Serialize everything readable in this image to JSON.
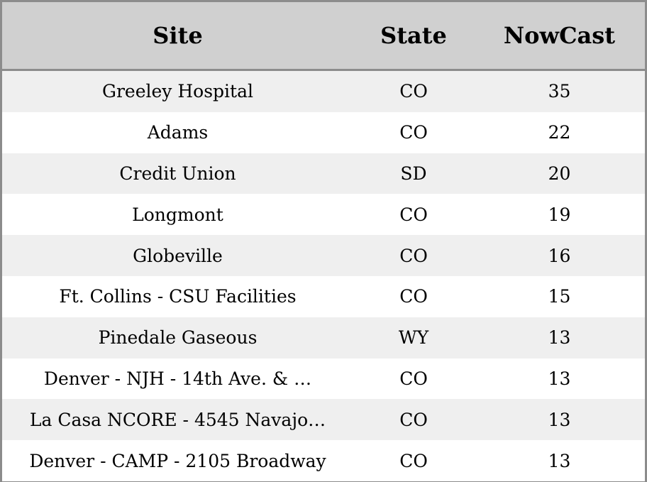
{
  "table": {
    "columns": [
      "Site",
      "State",
      "NowCast"
    ],
    "rows": [
      {
        "site": "Greeley Hospital",
        "state": "CO",
        "nowcast": "35"
      },
      {
        "site": "Adams",
        "state": "CO",
        "nowcast": "22"
      },
      {
        "site": "Credit Union",
        "state": "SD",
        "nowcast": "20"
      },
      {
        "site": "Longmont",
        "state": "CO",
        "nowcast": "19"
      },
      {
        "site": "Globeville",
        "state": "CO",
        "nowcast": "16"
      },
      {
        "site": "Ft. Collins - CSU Facilities",
        "state": "CO",
        "nowcast": "15"
      },
      {
        "site": "Pinedale Gaseous",
        "state": "WY",
        "nowcast": "13"
      },
      {
        "site": "Denver - NJH - 14th Ave. & …",
        "state": "CO",
        "nowcast": "13"
      },
      {
        "site": "La Casa NCORE - 4545 Navajo…",
        "state": "CO",
        "nowcast": "13"
      },
      {
        "site": "Denver - CAMP - 2105 Broadway",
        "state": "CO",
        "nowcast": "13"
      }
    ]
  },
  "colors": {
    "header_bg": "#d0d0d0",
    "row_alt_bg": "#efefef",
    "row_bg": "#ffffff",
    "border": "#8c8c8c"
  }
}
